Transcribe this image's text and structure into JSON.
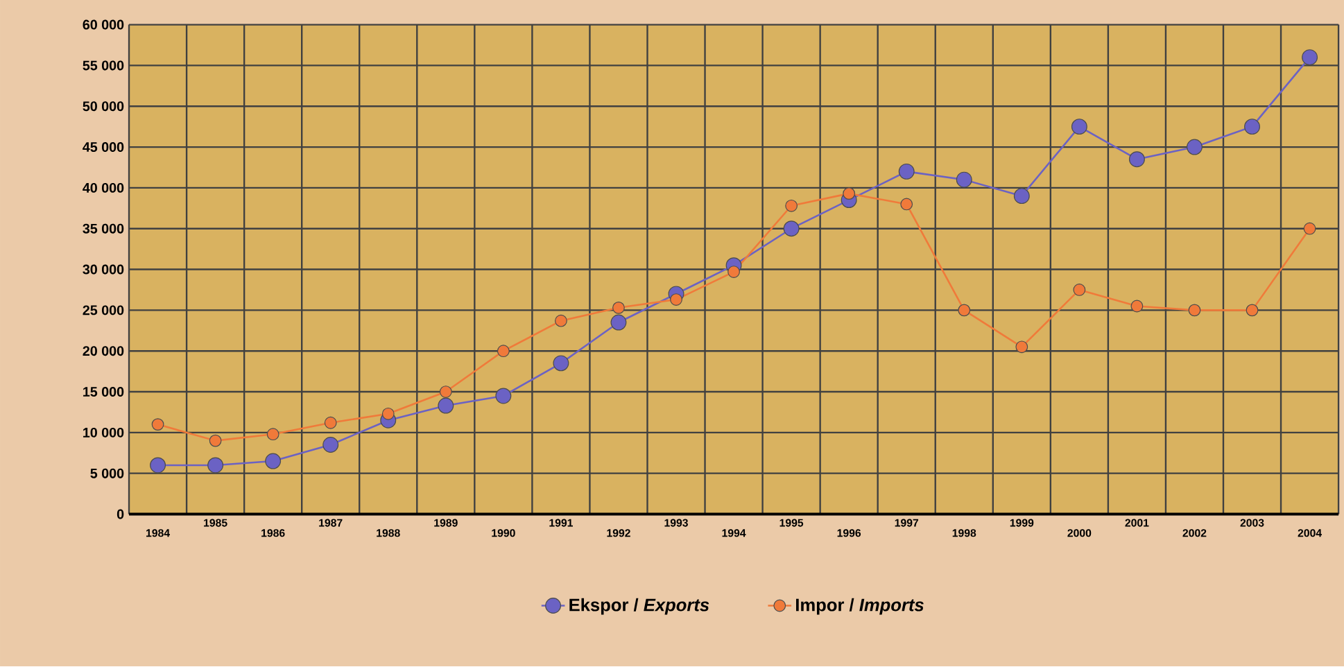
{
  "chart_data": {
    "type": "line",
    "categories": [
      "1984",
      "1985",
      "1986",
      "1987",
      "1988",
      "1989",
      "1990",
      "1991",
      "1992",
      "1993",
      "1994",
      "1995",
      "1996",
      "1997",
      "1998",
      "1999",
      "2000",
      "2001",
      "2002",
      "2003",
      "2004"
    ],
    "series": [
      {
        "name": "Ekspor / *Exports*",
        "color": "#6b62c4",
        "values": [
          6000,
          6000,
          6500,
          8500,
          11500,
          13300,
          14500,
          18500,
          23500,
          27000,
          30500,
          35000,
          38500,
          42000,
          41000,
          39000,
          47500,
          43500,
          45000,
          47500,
          56000
        ]
      },
      {
        "name": "Impor / *Imports*",
        "color": "#f07a3a",
        "values": [
          11000,
          9000,
          9800,
          11200,
          12300,
          15000,
          20000,
          23700,
          25300,
          26300,
          29700,
          37800,
          39300,
          38000,
          25000,
          20500,
          27500,
          25500,
          25000,
          25000,
          35000
        ]
      }
    ],
    "ylim": [
      0,
      60000
    ],
    "yticks": [
      {
        "value": 0,
        "label": "0"
      },
      {
        "value": 5000,
        "label": "5 000"
      },
      {
        "value": 10000,
        "label": "10 000"
      },
      {
        "value": 15000,
        "label": "15 000"
      },
      {
        "value": 20000,
        "label": "20 000"
      },
      {
        "value": 25000,
        "label": "25 000"
      },
      {
        "value": 30000,
        "label": "30 000"
      },
      {
        "value": 35000,
        "label": "35 000"
      },
      {
        "value": 40000,
        "label": "40 000"
      },
      {
        "value": 45000,
        "label": "45 000"
      },
      {
        "value": 50000,
        "label": "50 000"
      },
      {
        "value": 55000,
        "label": "55 000"
      },
      {
        "value": 60000,
        "label": "60 000"
      }
    ],
    "grid": true,
    "legend": "bottom",
    "marker": "circle",
    "line_style": "solid"
  }
}
